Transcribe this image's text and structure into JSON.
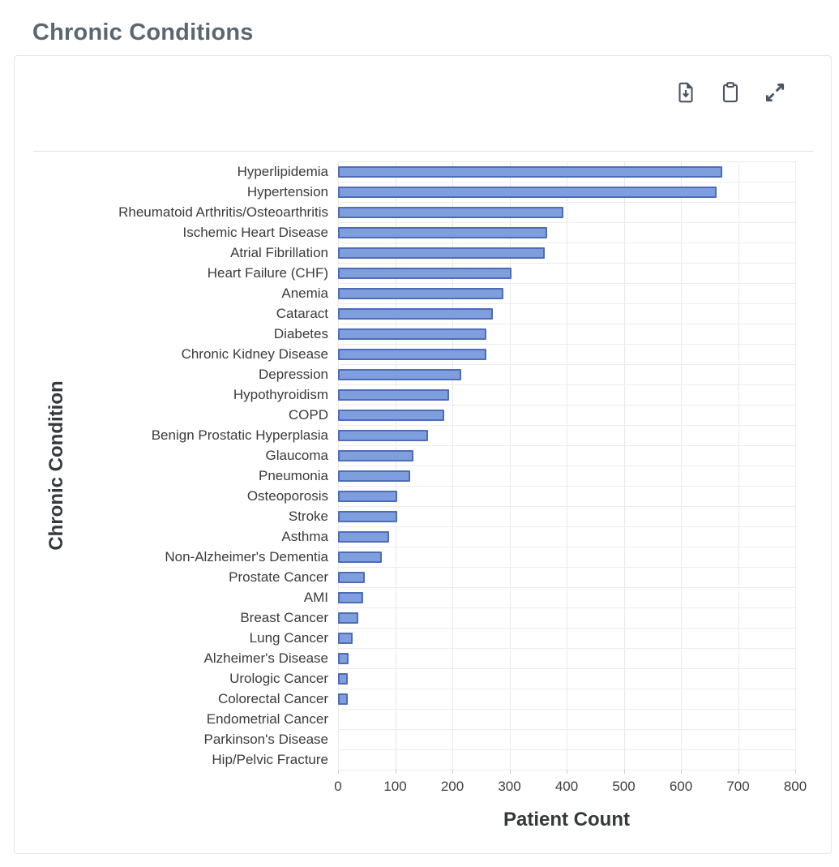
{
  "page": {
    "title": "Chronic Conditions"
  },
  "toolbar": {
    "icons": [
      {
        "name": "download-file-icon"
      },
      {
        "name": "clipboard-icon"
      },
      {
        "name": "expand-icon"
      }
    ]
  },
  "chart_data": {
    "type": "bar",
    "orientation": "horizontal",
    "title": "Chronic Conditions",
    "xlabel": "Patient Count",
    "ylabel": "Chronic Condition",
    "xlim": [
      0,
      800
    ],
    "xticks": [
      0,
      100,
      200,
      300,
      400,
      500,
      600,
      700,
      800
    ],
    "grid": true,
    "bar_color": "#7f9ede",
    "bar_border_color": "#4f6cb8",
    "categories": [
      "Hyperlipidemia",
      "Hypertension",
      "Rheumatoid Arthritis/Osteoarthritis",
      "Ischemic Heart Disease",
      "Atrial Fibrillation",
      "Heart Failure (CHF)",
      "Anemia",
      "Cataract",
      "Diabetes",
      "Chronic Kidney Disease",
      "Depression",
      "Hypothyroidism",
      "COPD",
      "Benign Prostatic Hyperplasia",
      "Glaucoma",
      "Pneumonia",
      "Osteoporosis",
      "Stroke",
      "Asthma",
      "Non-Alzheimer's Dementia",
      "Prostate Cancer",
      "AMI",
      "Breast Cancer",
      "Lung Cancer",
      "Alzheimer's Disease",
      "Urologic Cancer",
      "Colorectal Cancer",
      "Endometrial Cancer",
      "Parkinson's Disease",
      "Hip/Pelvic Fracture"
    ],
    "values": [
      672,
      663,
      395,
      366,
      361,
      304,
      289,
      271,
      260,
      259,
      216,
      194,
      186,
      158,
      132,
      126,
      104,
      104,
      90,
      77,
      47,
      44,
      36,
      25,
      19,
      17,
      17,
      0,
      0,
      0
    ]
  }
}
